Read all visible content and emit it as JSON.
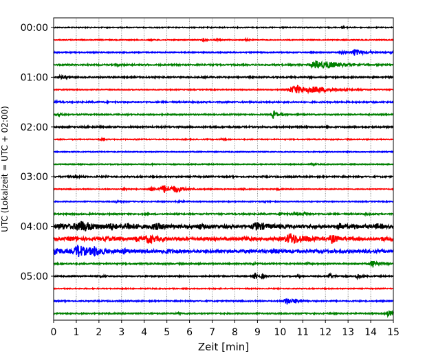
{
  "chart_data": {
    "type": "line",
    "title": "",
    "xlabel": "Zeit  [min]",
    "ylabel": "UTC (Lokalzeit = UTC + 02:00)",
    "xlim": [
      0,
      15
    ],
    "x_ticks": [
      "0",
      "1",
      "2",
      "3",
      "4",
      "5",
      "6",
      "7",
      "8",
      "9",
      "10",
      "11",
      "12",
      "13",
      "14",
      "15"
    ],
    "y_tick_labels": [
      "00:00",
      "01:00",
      "02:00",
      "03:00",
      "04:00",
      "05:00"
    ],
    "y_tick_trace_index": [
      0,
      4,
      8,
      12,
      16,
      20
    ],
    "grid": "vertical dotted at each minute",
    "trace_interval_min": 15,
    "colors": [
      "#000000",
      "#ff0000",
      "#0000ff",
      "#008000"
    ],
    "traces": [
      {
        "start": "00:00",
        "color": "#000000",
        "noise": 0.6,
        "events": [
          [
            12.8,
            0.15,
            0.6
          ]
        ]
      },
      {
        "start": "00:15",
        "color": "#ff0000",
        "noise": 0.6,
        "events": [
          [
            4.2,
            0.1,
            1.2
          ],
          [
            6.6,
            0.1,
            2.0
          ],
          [
            7.2,
            0.1,
            1.2
          ],
          [
            8.5,
            0.1,
            1.2
          ]
        ]
      },
      {
        "start": "00:30",
        "color": "#0000ff",
        "noise": 0.7,
        "events": [
          [
            12.7,
            0.15,
            2.0
          ],
          [
            13.3,
            0.3,
            4.5
          ],
          [
            14.0,
            0.1,
            1.0
          ],
          [
            14.9,
            0.1,
            1.0
          ]
        ]
      },
      {
        "start": "00:45",
        "color": "#008000",
        "noise": 0.9,
        "events": [
          [
            2.8,
            0.15,
            1.0
          ],
          [
            11.6,
            0.5,
            5.5
          ],
          [
            12.2,
            0.4,
            2.2
          ]
        ]
      },
      {
        "start": "01:00",
        "color": "#000000",
        "noise": 0.9,
        "events": [
          [
            0.3,
            0.2,
            1.6
          ],
          [
            11.3,
            0.15,
            0.8
          ]
        ]
      },
      {
        "start": "01:15",
        "color": "#ff0000",
        "noise": 0.6,
        "events": [
          [
            10.7,
            0.6,
            6.0
          ],
          [
            11.6,
            0.7,
            2.2
          ]
        ]
      },
      {
        "start": "01:30",
        "color": "#0000ff",
        "noise": 0.9,
        "events": [
          [
            0.1,
            0.1,
            1.0
          ]
        ]
      },
      {
        "start": "01:45",
        "color": "#008000",
        "noise": 0.8,
        "events": [
          [
            0.2,
            0.15,
            1.6
          ],
          [
            9.7,
            0.12,
            6.0
          ],
          [
            10.1,
            0.1,
            1.2
          ]
        ]
      },
      {
        "start": "02:00",
        "color": "#000000",
        "noise": 1.0,
        "events": []
      },
      {
        "start": "02:15",
        "color": "#ff0000",
        "noise": 0.6,
        "events": [
          [
            7.4,
            0.1,
            1.4
          ],
          [
            2.1,
            0.1,
            0.8
          ]
        ]
      },
      {
        "start": "02:30",
        "color": "#0000ff",
        "noise": 0.6,
        "events": []
      },
      {
        "start": "02:45",
        "color": "#008000",
        "noise": 0.6,
        "events": [
          [
            11.4,
            0.1,
            1.6
          ],
          [
            4.3,
            0.1,
            0.7
          ]
        ]
      },
      {
        "start": "03:00",
        "color": "#000000",
        "noise": 0.9,
        "events": [
          [
            0.7,
            0.2,
            1.2
          ]
        ]
      },
      {
        "start": "03:15",
        "color": "#ff0000",
        "noise": 0.6,
        "events": [
          [
            3.1,
            0.12,
            1.6
          ],
          [
            4.3,
            0.3,
            2.2
          ],
          [
            4.9,
            0.35,
            5.0
          ],
          [
            5.4,
            0.3,
            2.8
          ],
          [
            8.3,
            0.1,
            1.6
          ],
          [
            9.9,
            0.1,
            1.2
          ]
        ]
      },
      {
        "start": "03:30",
        "color": "#0000ff",
        "noise": 0.6,
        "events": [
          [
            2.8,
            0.15,
            1.6
          ],
          [
            5.5,
            0.2,
            1.0
          ],
          [
            9.3,
            0.1,
            0.8
          ]
        ]
      },
      {
        "start": "03:45",
        "color": "#008000",
        "noise": 0.9,
        "events": [
          [
            10.0,
            0.1,
            2.5
          ],
          [
            10.6,
            0.2,
            2.2
          ],
          [
            11.1,
            0.15,
            2.0
          ],
          [
            8.4,
            0.1,
            1.0
          ],
          [
            13.8,
            0.1,
            0.8
          ]
        ]
      },
      {
        "start": "04:00",
        "color": "#000000",
        "noise": 2.2,
        "events": [
          [
            0.3,
            0.3,
            3.2
          ],
          [
            1.2,
            0.5,
            6.5
          ],
          [
            2.5,
            0.3,
            2.4
          ],
          [
            3.3,
            0.3,
            3.2
          ],
          [
            4.5,
            0.4,
            3.0
          ],
          [
            6.4,
            0.2,
            2.2
          ],
          [
            9.0,
            0.4,
            4.5
          ],
          [
            12.6,
            0.2,
            3.2
          ],
          [
            13.3,
            0.15,
            1.8
          ],
          [
            14.3,
            0.15,
            2.8
          ]
        ]
      },
      {
        "start": "04:15",
        "color": "#ff0000",
        "noise": 2.0,
        "events": [
          [
            0.8,
            0.3,
            2.0
          ],
          [
            2.4,
            0.3,
            1.8
          ],
          [
            3.7,
            0.2,
            2.6
          ],
          [
            4.2,
            0.3,
            4.8
          ],
          [
            8.5,
            0.2,
            1.6
          ],
          [
            10.5,
            0.5,
            7.0
          ],
          [
            12.3,
            0.2,
            4.8
          ],
          [
            14.5,
            0.2,
            1.8
          ]
        ]
      },
      {
        "start": "04:30",
        "color": "#0000ff",
        "noise": 2.0,
        "events": [
          [
            0.1,
            0.2,
            5.0
          ],
          [
            1.1,
            0.35,
            8.0
          ],
          [
            1.8,
            0.3,
            4.5
          ],
          [
            3.1,
            0.2,
            2.6
          ],
          [
            5.0,
            0.2,
            1.8
          ],
          [
            9.7,
            0.2,
            2.6
          ]
        ]
      },
      {
        "start": "04:45",
        "color": "#008000",
        "noise": 0.9,
        "events": [
          [
            8.8,
            0.1,
            1.6
          ],
          [
            11.2,
            0.1,
            1.2
          ],
          [
            14.1,
            0.2,
            5.0
          ]
        ]
      },
      {
        "start": "05:00",
        "color": "#000000",
        "noise": 0.8,
        "events": [
          [
            2.1,
            0.1,
            2.0
          ],
          [
            8.9,
            0.1,
            4.5
          ],
          [
            9.2,
            0.1,
            3.2
          ],
          [
            12.2,
            0.15,
            3.6
          ],
          [
            13.4,
            0.1,
            3.2
          ],
          [
            10.8,
            0.1,
            1.2
          ]
        ]
      },
      {
        "start": "05:15",
        "color": "#ff0000",
        "noise": 0.6,
        "events": []
      },
      {
        "start": "05:30",
        "color": "#0000ff",
        "noise": 0.8,
        "events": [
          [
            10.3,
            0.25,
            4.5
          ],
          [
            10.7,
            0.15,
            1.6
          ]
        ]
      },
      {
        "start": "05:45",
        "color": "#008000",
        "noise": 0.8,
        "events": [
          [
            14.8,
            0.2,
            4.0
          ],
          [
            5.5,
            0.1,
            1.0
          ]
        ]
      }
    ]
  }
}
